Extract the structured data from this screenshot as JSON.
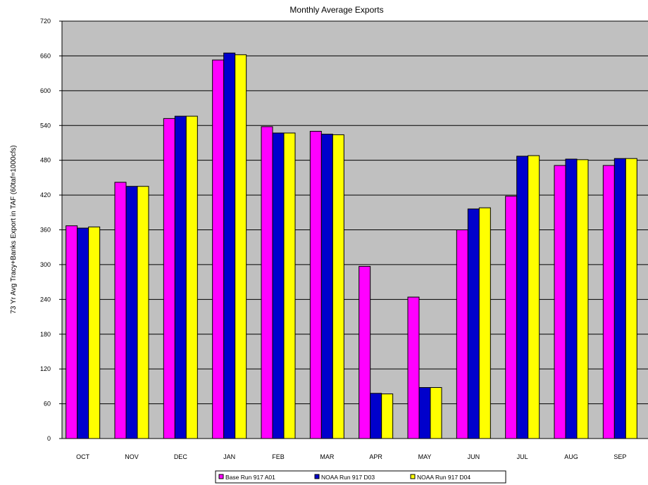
{
  "chart_data": {
    "type": "bar",
    "title": "Monthly Average Exports",
    "ylabel": "73 Yr Avg Tracy+Banks Export in TAF (60taf=1000cfs)",
    "xlabel": "",
    "ylim": [
      0,
      720
    ],
    "yticks": [
      0,
      60,
      120,
      180,
      240,
      300,
      360,
      420,
      480,
      540,
      600,
      660,
      720
    ],
    "grid": true,
    "legend_position": "bottom",
    "plot_background": "#c0c0c0",
    "categories": [
      "OCT",
      "NOV",
      "DEC",
      "JAN",
      "FEB",
      "MAR",
      "APR",
      "MAY",
      "JUN",
      "JUL",
      "AUG",
      "SEP"
    ],
    "series": [
      {
        "name": "Base Run 917 A01",
        "color": "#ff00ff",
        "values": [
          367,
          442,
          552,
          653,
          538,
          530,
          297,
          244,
          360,
          418,
          471,
          471
        ]
      },
      {
        "name": "NOAA Run 917 D03",
        "color": "#0000cc",
        "values": [
          363,
          435,
          556,
          665,
          527,
          525,
          78,
          88,
          396,
          487,
          482,
          483
        ]
      },
      {
        "name": "NOAA Run 917 D04",
        "color": "#ffff00",
        "values": [
          365,
          435,
          556,
          662,
          527,
          524,
          77,
          88,
          398,
          488,
          481,
          483
        ]
      }
    ]
  }
}
